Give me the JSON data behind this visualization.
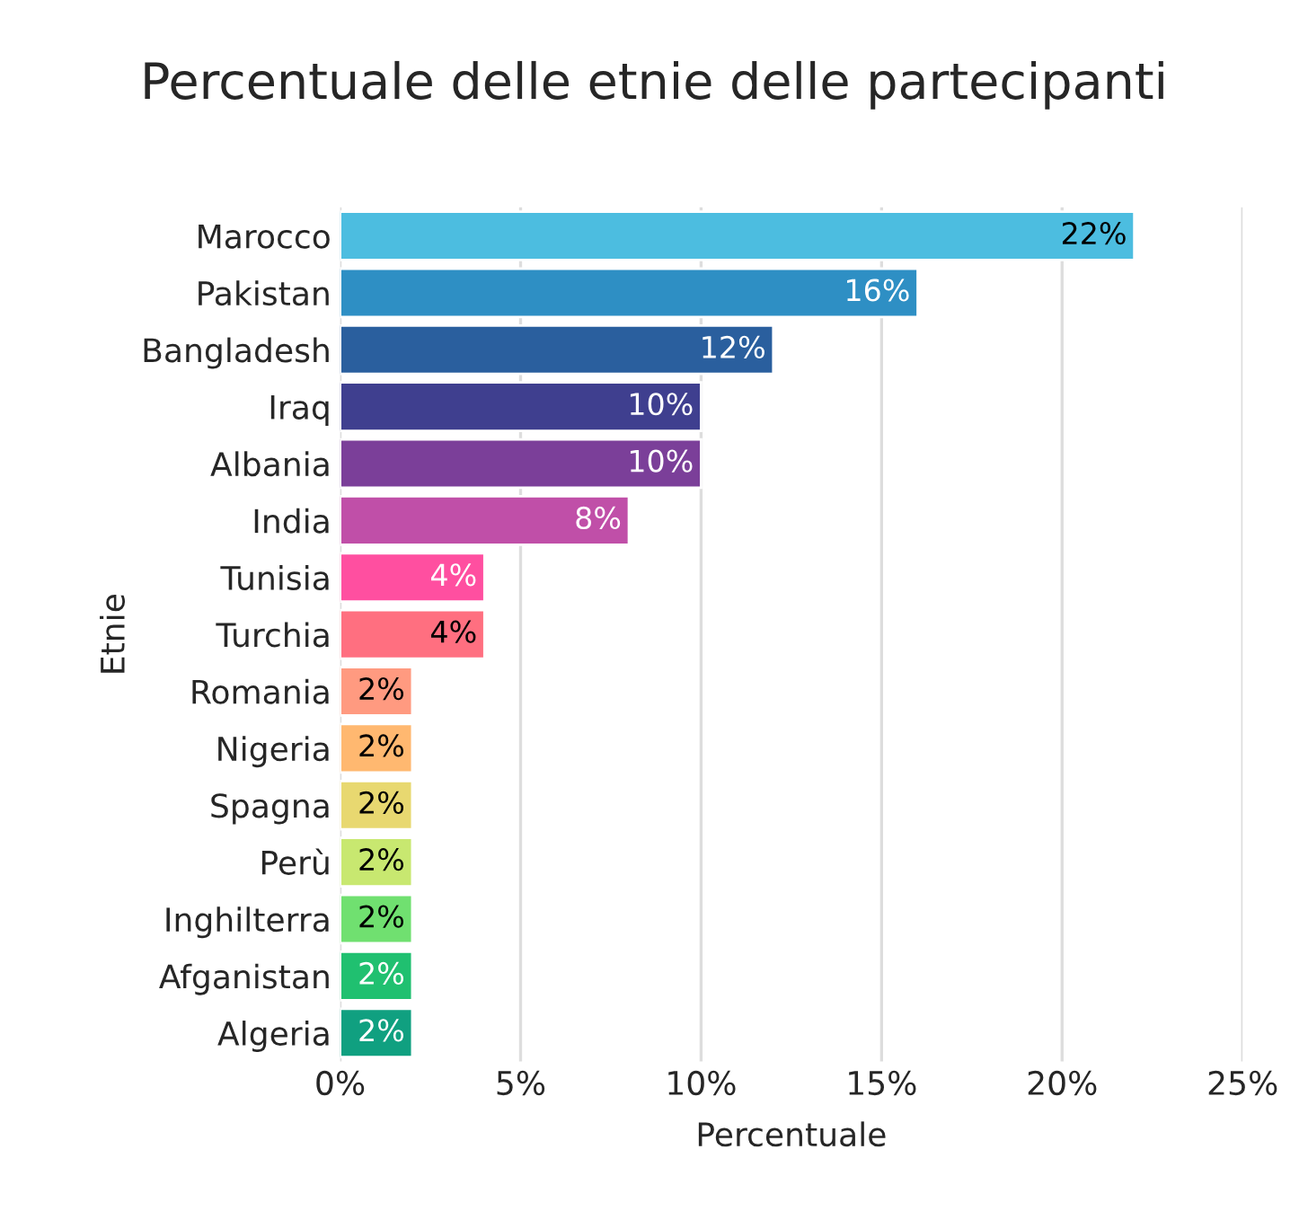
{
  "chart_data": {
    "type": "bar",
    "orientation": "horizontal",
    "title": "Percentuale delle etnie delle partecipanti",
    "xlabel": "Percentuale",
    "ylabel": "Etnie",
    "categories": [
      "Marocco",
      "Pakistan",
      "Bangladesh",
      "Iraq",
      "Albania",
      "India",
      "Tunisia",
      "Turchia",
      "Romania",
      "Nigeria",
      "Spagna",
      "Perù",
      "Inghilterra",
      "Afganistan",
      "Algeria"
    ],
    "values": [
      22,
      16,
      12,
      10,
      10,
      8,
      4,
      4,
      2,
      2,
      2,
      2,
      2,
      2,
      2
    ],
    "value_labels": [
      "22%",
      "16%",
      "12%",
      "10%",
      "10%",
      "8%",
      "4%",
      "4%",
      "2%",
      "2%",
      "2%",
      "2%",
      "2%",
      "2%",
      "2%"
    ],
    "colors": [
      "#4cbde0",
      "#2e8fc4",
      "#2a5f9e",
      "#3f3f8f",
      "#7b3f99",
      "#c04fa8",
      "#ff4fa0",
      "#ff6f80",
      "#ff9a80",
      "#ffb870",
      "#e8d870",
      "#c8e870",
      "#70e070",
      "#20c070",
      "#10a080"
    ],
    "xlim": [
      0,
      25
    ],
    "xticks": [
      {
        "value": 0,
        "label": "0%"
      },
      {
        "value": 5,
        "label": "5%"
      },
      {
        "value": 10,
        "label": "10%"
      },
      {
        "value": 15,
        "label": "15%"
      },
      {
        "value": 20,
        "label": "20%"
      },
      {
        "value": 25,
        "label": "25%"
      }
    ],
    "grid": "x"
  }
}
